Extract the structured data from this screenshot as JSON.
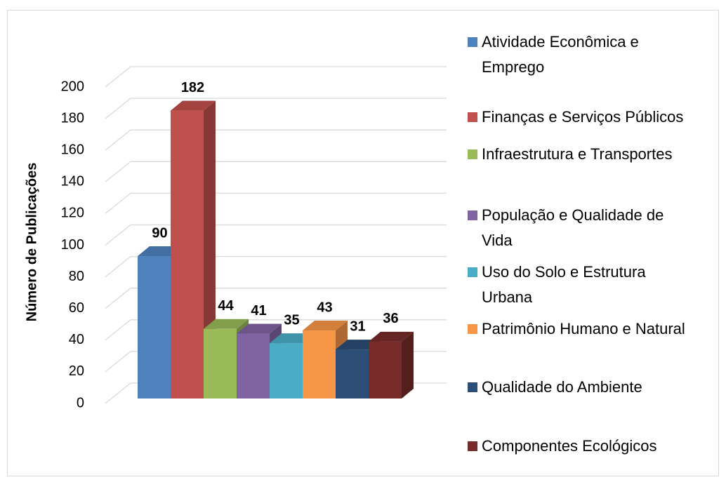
{
  "chart_data": {
    "type": "bar",
    "y_label": "Número de Publicações",
    "ylim": [
      0,
      200
    ],
    "yticks": [
      0,
      20,
      40,
      60,
      80,
      100,
      120,
      140,
      160,
      180,
      200
    ],
    "grid": true,
    "legend": "right",
    "series": [
      {
        "name": "Atividade Econômica e Emprego",
        "color": "#4f81bd",
        "values": [
          90
        ]
      },
      {
        "name": "Finanças e Serviços Públicos",
        "color": "#c0504d",
        "values": [
          182
        ]
      },
      {
        "name": "Infraestrutura e Transportes",
        "color": "#9bbb59",
        "values": [
          44
        ]
      },
      {
        "name": "População e Qualidade de Vida",
        "color": "#8064a2",
        "values": [
          41
        ]
      },
      {
        "name": "Uso do Solo e Estrutura Urbana",
        "color": "#4bacc6",
        "values": [
          35
        ]
      },
      {
        "name": "Patrimônio Humano e Natural",
        "color": "#f79646",
        "values": [
          43
        ]
      },
      {
        "name": "Qualidade do Ambiente",
        "color": "#2c4d75",
        "values": [
          31
        ]
      },
      {
        "name": "Componentes Ecológicos",
        "color": "#772c2a",
        "values": [
          36
        ]
      }
    ]
  }
}
